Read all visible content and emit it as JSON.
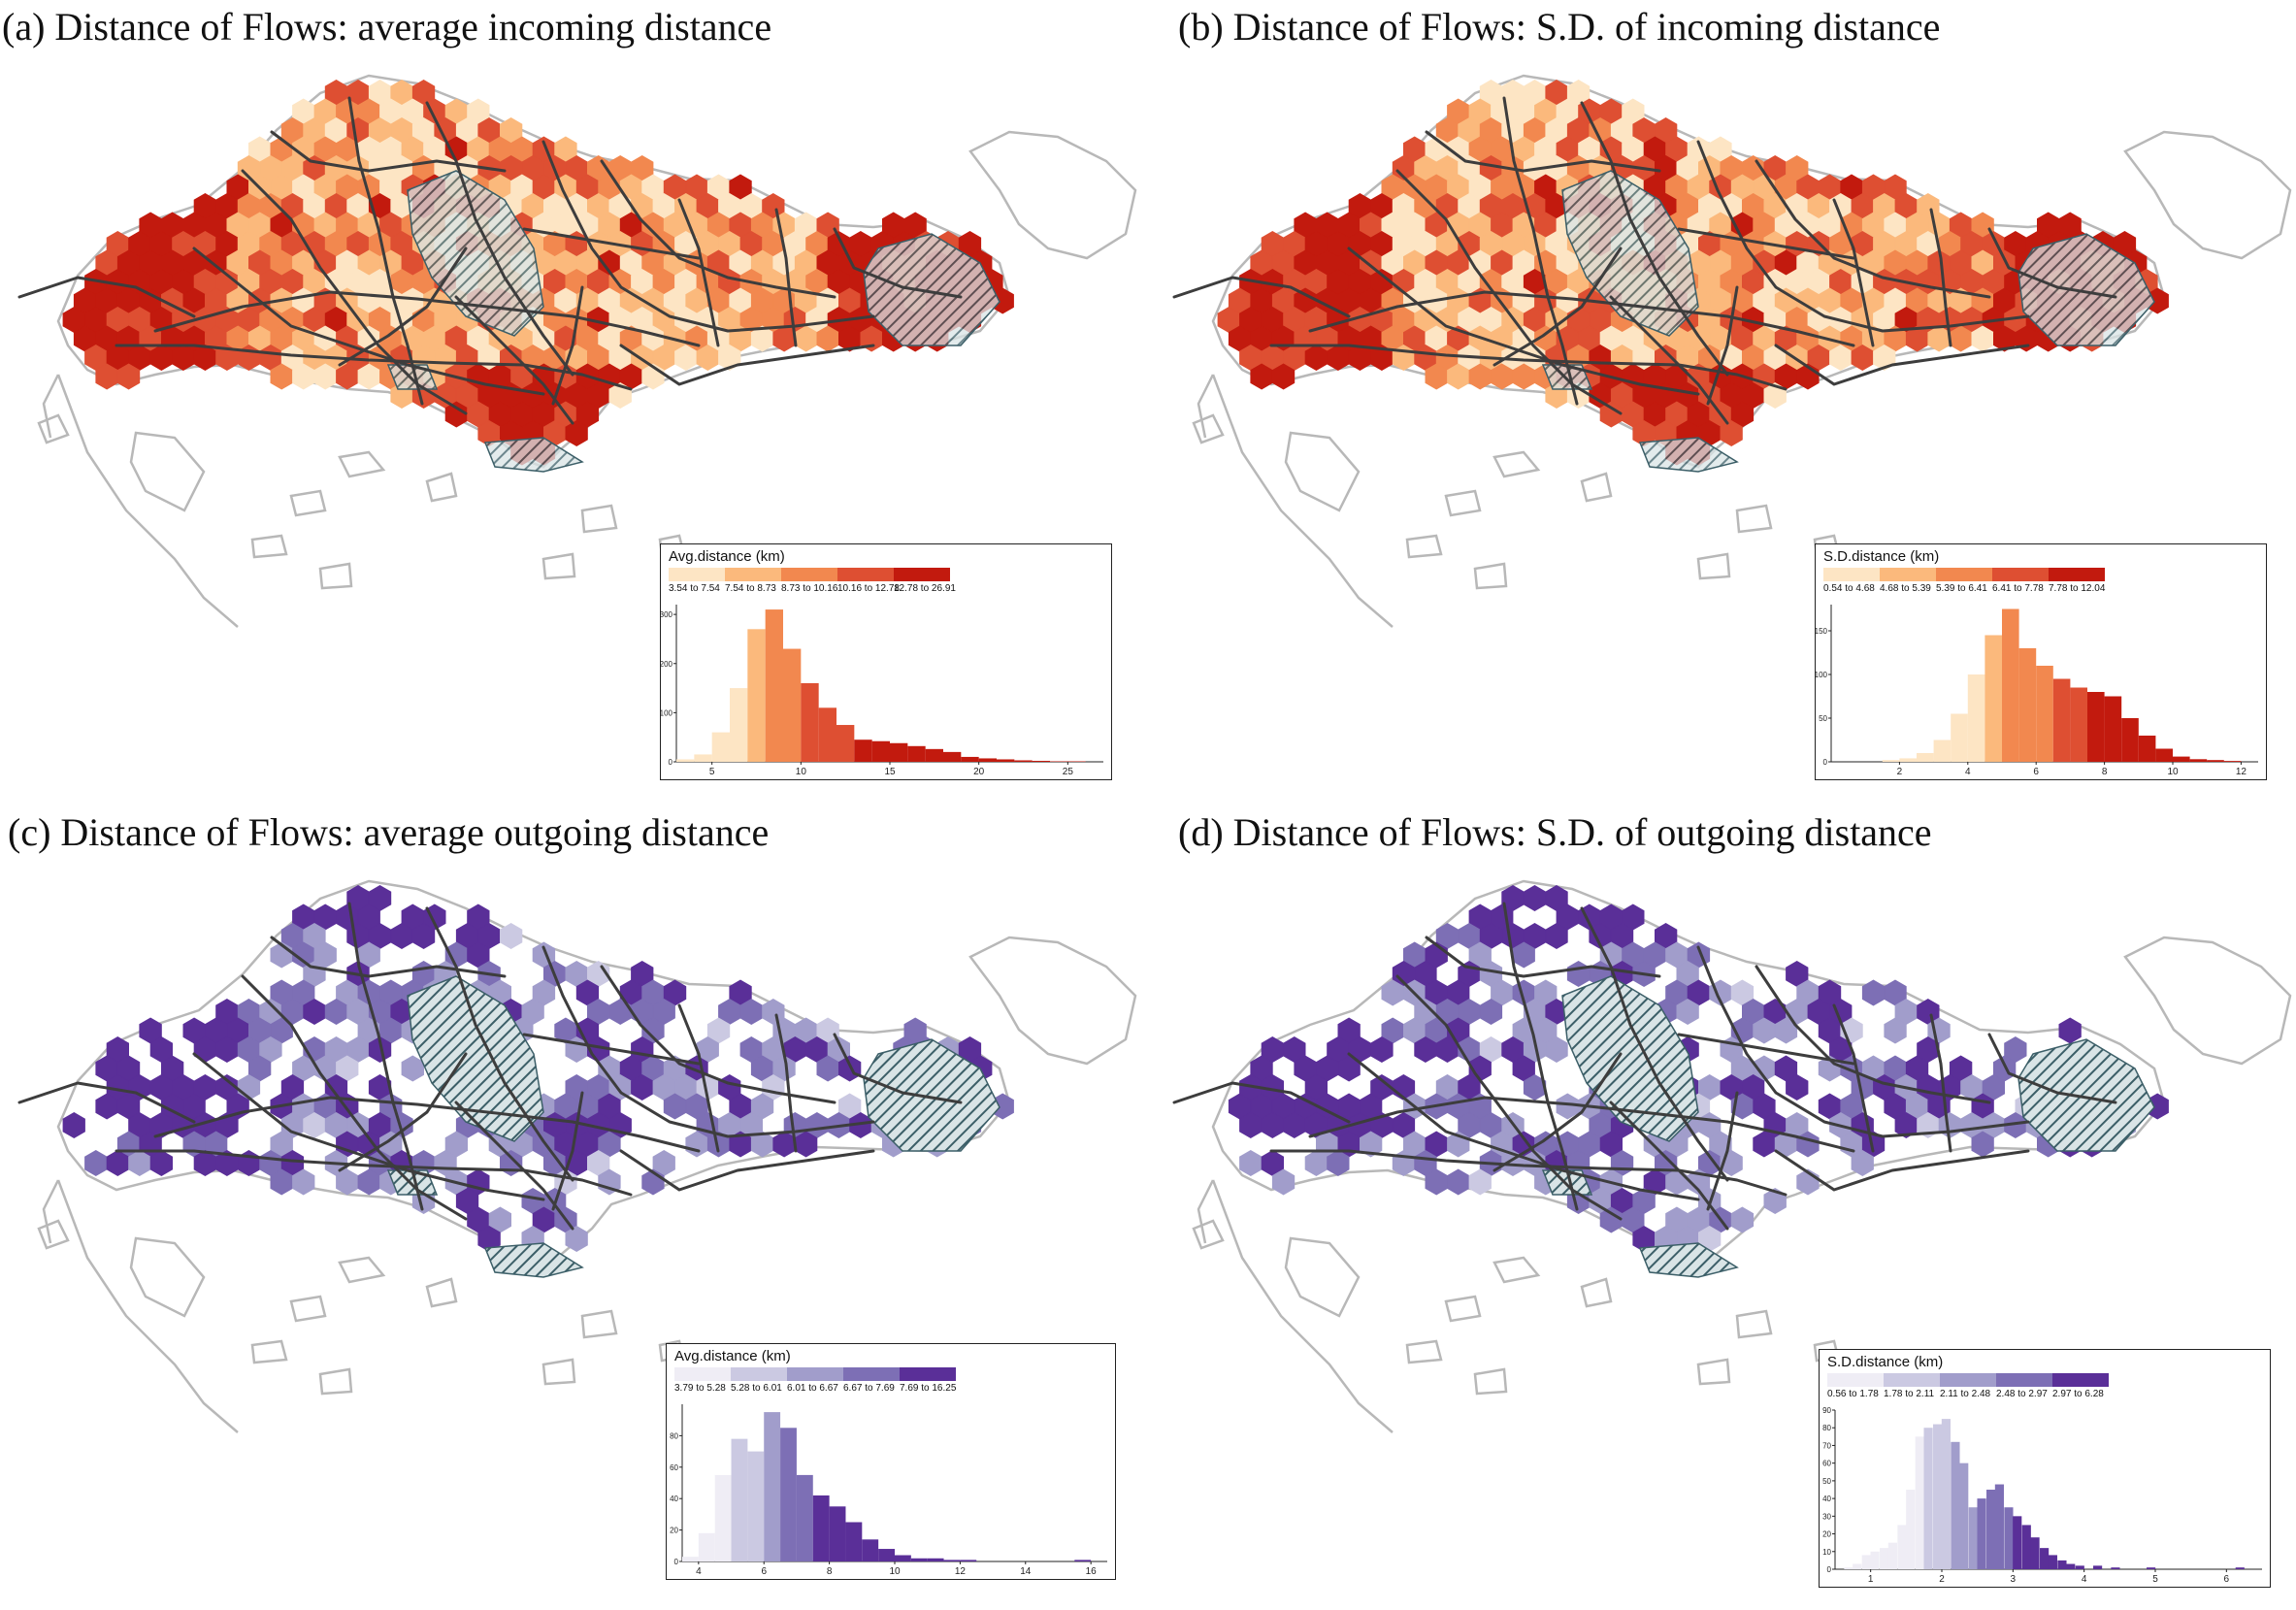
{
  "panels": [
    {
      "id": "a",
      "title": "(a) Distance of Flows: average incoming distance",
      "scheme": "red",
      "legend": {
        "title": "Avg.distance (km)",
        "classes": [
          "3.54 to 7.54",
          "7.54 to 8.73",
          "8.73 to 10.16",
          "10.16 to 12.78",
          "12.78 to 26.91"
        ],
        "colors": [
          "#fde5c4",
          "#fbb97c",
          "#f2884f",
          "#de4f32",
          "#c21a0e"
        ]
      },
      "chart_data": {
        "type": "bar",
        "xlim": [
          3,
          27
        ],
        "ylim": [
          0,
          320
        ],
        "xticks": [
          5,
          10,
          15,
          20,
          25
        ],
        "yticks": [
          0,
          100,
          200,
          300
        ],
        "bin_width": 1,
        "bins": [
          {
            "x": 3.5,
            "y": 5,
            "class": 0
          },
          {
            "x": 4.5,
            "y": 15,
            "class": 0
          },
          {
            "x": 5.5,
            "y": 60,
            "class": 0
          },
          {
            "x": 6.5,
            "y": 150,
            "class": 0
          },
          {
            "x": 7.5,
            "y": 270,
            "class": 1
          },
          {
            "x": 8.5,
            "y": 310,
            "class": 2
          },
          {
            "x": 9.5,
            "y": 230,
            "class": 2
          },
          {
            "x": 10.5,
            "y": 160,
            "class": 3
          },
          {
            "x": 11.5,
            "y": 110,
            "class": 3
          },
          {
            "x": 12.5,
            "y": 75,
            "class": 3
          },
          {
            "x": 13.5,
            "y": 45,
            "class": 4
          },
          {
            "x": 14.5,
            "y": 42,
            "class": 4
          },
          {
            "x": 15.5,
            "y": 38,
            "class": 4
          },
          {
            "x": 16.5,
            "y": 32,
            "class": 4
          },
          {
            "x": 17.5,
            "y": 26,
            "class": 4
          },
          {
            "x": 18.5,
            "y": 20,
            "class": 4
          },
          {
            "x": 19.5,
            "y": 10,
            "class": 4
          },
          {
            "x": 20.5,
            "y": 7,
            "class": 4
          },
          {
            "x": 21.5,
            "y": 5,
            "class": 4
          },
          {
            "x": 22.5,
            "y": 3,
            "class": 4
          },
          {
            "x": 23.5,
            "y": 2,
            "class": 4
          },
          {
            "x": 24.5,
            "y": 1,
            "class": 4
          },
          {
            "x": 25.5,
            "y": 1,
            "class": 4
          }
        ]
      }
    },
    {
      "id": "b",
      "title": "(b) Distance of Flows: S.D. of incoming distance",
      "scheme": "red",
      "legend": {
        "title": "S.D.distance (km)",
        "classes": [
          "0.54 to 4.68",
          "4.68 to 5.39",
          "5.39 to 6.41",
          "6.41 to 7.78",
          "7.78 to 12.04"
        ],
        "colors": [
          "#fde5c4",
          "#fbb97c",
          "#f2884f",
          "#de4f32",
          "#c21a0e"
        ]
      },
      "chart_data": {
        "type": "bar",
        "xlim": [
          0,
          12.5
        ],
        "ylim": [
          0,
          180
        ],
        "xticks": [
          2,
          4,
          6,
          8,
          10,
          12
        ],
        "yticks": [
          0,
          50,
          100,
          150
        ],
        "bin_width": 0.5,
        "bins": [
          {
            "x": 1.75,
            "y": 2,
            "class": 0
          },
          {
            "x": 2.25,
            "y": 4,
            "class": 0
          },
          {
            "x": 2.75,
            "y": 10,
            "class": 0
          },
          {
            "x": 3.25,
            "y": 25,
            "class": 0
          },
          {
            "x": 3.75,
            "y": 55,
            "class": 0
          },
          {
            "x": 4.25,
            "y": 100,
            "class": 0
          },
          {
            "x": 4.75,
            "y": 145,
            "class": 1
          },
          {
            "x": 5.25,
            "y": 175,
            "class": 2
          },
          {
            "x": 5.75,
            "y": 130,
            "class": 2
          },
          {
            "x": 6.25,
            "y": 110,
            "class": 2
          },
          {
            "x": 6.75,
            "y": 95,
            "class": 3
          },
          {
            "x": 7.25,
            "y": 85,
            "class": 3
          },
          {
            "x": 7.75,
            "y": 80,
            "class": 4
          },
          {
            "x": 8.25,
            "y": 75,
            "class": 4
          },
          {
            "x": 8.75,
            "y": 50,
            "class": 4
          },
          {
            "x": 9.25,
            "y": 30,
            "class": 4
          },
          {
            "x": 9.75,
            "y": 15,
            "class": 4
          },
          {
            "x": 10.25,
            "y": 6,
            "class": 4
          },
          {
            "x": 10.75,
            "y": 3,
            "class": 4
          },
          {
            "x": 11.25,
            "y": 2,
            "class": 4
          },
          {
            "x": 11.75,
            "y": 1,
            "class": 4
          }
        ]
      }
    },
    {
      "id": "c",
      "title": "(c) Distance of Flows: average outgoing distance",
      "scheme": "purple",
      "legend": {
        "title": "Avg.distance (km)",
        "classes": [
          "3.79 to 5.28",
          "5.28 to 6.01",
          "6.01 to 6.67",
          "6.67 to 7.69",
          "7.69 to 16.25"
        ],
        "colors": [
          "#efedf5",
          "#cbc9e2",
          "#a19dcb",
          "#7d6fb5",
          "#5a2f98"
        ]
      },
      "chart_data": {
        "type": "bar",
        "xlim": [
          3.5,
          16.5
        ],
        "ylim": [
          0,
          100
        ],
        "xticks": [
          4,
          6,
          8,
          10,
          12,
          14,
          16
        ],
        "yticks": [
          0,
          20,
          40,
          60,
          80
        ],
        "bin_width": 0.5,
        "bins": [
          {
            "x": 3.75,
            "y": 3,
            "class": 0
          },
          {
            "x": 4.25,
            "y": 18,
            "class": 0
          },
          {
            "x": 4.75,
            "y": 55,
            "class": 0
          },
          {
            "x": 5.25,
            "y": 78,
            "class": 1
          },
          {
            "x": 5.75,
            "y": 70,
            "class": 1
          },
          {
            "x": 6.25,
            "y": 95,
            "class": 2
          },
          {
            "x": 6.75,
            "y": 85,
            "class": 3
          },
          {
            "x": 7.25,
            "y": 55,
            "class": 3
          },
          {
            "x": 7.75,
            "y": 42,
            "class": 4
          },
          {
            "x": 8.25,
            "y": 35,
            "class": 4
          },
          {
            "x": 8.75,
            "y": 25,
            "class": 4
          },
          {
            "x": 9.25,
            "y": 14,
            "class": 4
          },
          {
            "x": 9.75,
            "y": 8,
            "class": 4
          },
          {
            "x": 10.25,
            "y": 4,
            "class": 4
          },
          {
            "x": 10.75,
            "y": 2,
            "class": 4
          },
          {
            "x": 11.25,
            "y": 2,
            "class": 4
          },
          {
            "x": 11.75,
            "y": 1,
            "class": 4
          },
          {
            "x": 12.25,
            "y": 1,
            "class": 4
          },
          {
            "x": 15.75,
            "y": 1,
            "class": 4
          }
        ]
      }
    },
    {
      "id": "d",
      "title": "(d) Distance of Flows: S.D. of outgoing distance",
      "scheme": "purple",
      "legend": {
        "title": "S.D.distance (km)",
        "classes": [
          "0.56 to 1.78",
          "1.78 to 2.11",
          "2.11 to 2.48",
          "2.48 to 2.97",
          "2.97 to 6.28"
        ],
        "colors": [
          "#efedf5",
          "#cbc9e2",
          "#a19dcb",
          "#7d6fb5",
          "#5a2f98"
        ]
      },
      "chart_data": {
        "type": "bar",
        "xlim": [
          0.5,
          6.5
        ],
        "ylim": [
          0,
          90
        ],
        "xticks": [
          1,
          2,
          3,
          4,
          5,
          6
        ],
        "yticks": [
          0,
          10,
          20,
          30,
          40,
          50,
          60,
          70,
          80,
          90
        ],
        "bin_width": 0.125,
        "bins": [
          {
            "x": 0.69,
            "y": 1,
            "class": 0
          },
          {
            "x": 0.81,
            "y": 3,
            "class": 0
          },
          {
            "x": 0.94,
            "y": 8,
            "class": 0
          },
          {
            "x": 1.06,
            "y": 10,
            "class": 0
          },
          {
            "x": 1.19,
            "y": 12,
            "class": 0
          },
          {
            "x": 1.31,
            "y": 15,
            "class": 0
          },
          {
            "x": 1.44,
            "y": 25,
            "class": 0
          },
          {
            "x": 1.56,
            "y": 45,
            "class": 0
          },
          {
            "x": 1.69,
            "y": 75,
            "class": 0
          },
          {
            "x": 1.81,
            "y": 80,
            "class": 1
          },
          {
            "x": 1.94,
            "y": 82,
            "class": 1
          },
          {
            "x": 2.06,
            "y": 85,
            "class": 1
          },
          {
            "x": 2.19,
            "y": 72,
            "class": 2
          },
          {
            "x": 2.31,
            "y": 60,
            "class": 2
          },
          {
            "x": 2.44,
            "y": 35,
            "class": 2
          },
          {
            "x": 2.56,
            "y": 40,
            "class": 3
          },
          {
            "x": 2.69,
            "y": 45,
            "class": 3
          },
          {
            "x": 2.81,
            "y": 48,
            "class": 3
          },
          {
            "x": 2.94,
            "y": 35,
            "class": 3
          },
          {
            "x": 3.06,
            "y": 30,
            "class": 4
          },
          {
            "x": 3.19,
            "y": 25,
            "class": 4
          },
          {
            "x": 3.31,
            "y": 18,
            "class": 4
          },
          {
            "x": 3.44,
            "y": 12,
            "class": 4
          },
          {
            "x": 3.56,
            "y": 8,
            "class": 4
          },
          {
            "x": 3.69,
            "y": 5,
            "class": 4
          },
          {
            "x": 3.81,
            "y": 3,
            "class": 4
          },
          {
            "x": 3.94,
            "y": 2,
            "class": 4
          },
          {
            "x": 4.19,
            "y": 2,
            "class": 4
          },
          {
            "x": 4.44,
            "y": 1,
            "class": 4
          },
          {
            "x": 4.94,
            "y": 1,
            "class": 4
          },
          {
            "x": 6.19,
            "y": 1,
            "class": 4
          }
        ]
      }
    }
  ]
}
